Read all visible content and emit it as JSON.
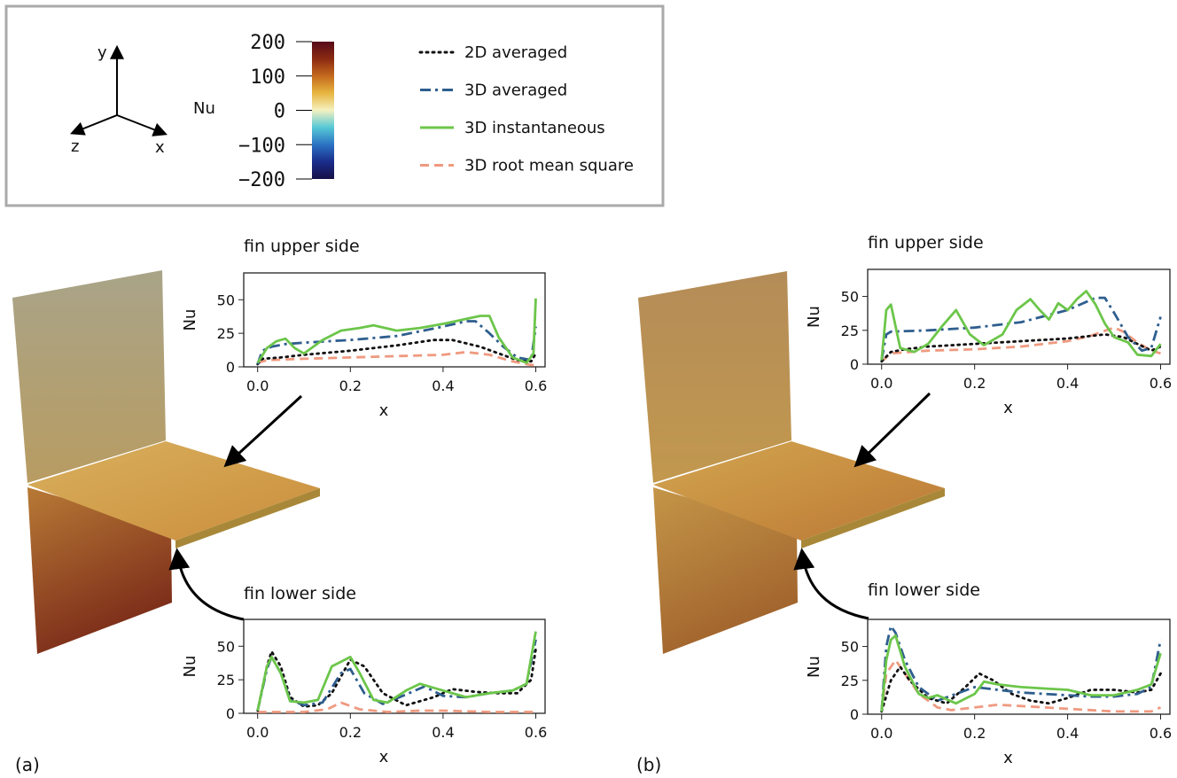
{
  "legend": {
    "axes": {
      "x": "x",
      "y": "y",
      "z": "z"
    },
    "colorbar": {
      "label": "Nu",
      "ticks": [
        "200",
        "100",
        "0",
        "−100",
        "−200"
      ],
      "range": [
        -200,
        200
      ],
      "colors": [
        "#560a1a",
        "#8b2a12",
        "#c46a1e",
        "#e8b640",
        "#f4f1c0",
        "#56c8d6",
        "#2b72c2",
        "#1a2c8a",
        "#161048"
      ]
    },
    "series_styles": [
      {
        "name": "2D averaged",
        "color": "#111111",
        "dash": "dotted"
      },
      {
        "name": "3D averaged",
        "color": "#2e5e8e",
        "dash": "dashdot"
      },
      {
        "name": "3D instantaneous",
        "color": "#6cc64a",
        "dash": "solid"
      },
      {
        "name": "3D root mean square",
        "color": "#ef9a80",
        "dash": "dashed"
      }
    ]
  },
  "panels": [
    {
      "label": "(a)",
      "fin_colors": {
        "vertical_top": "#b8a57a",
        "fin": "#d2a64e",
        "vertical_bottom": "#9a4e22"
      }
    },
    {
      "label": "(b)",
      "fin_colors": {
        "vertical_top": "#b88e52",
        "fin": "#cc9a48",
        "vertical_bottom": "#a86c30"
      }
    }
  ],
  "chart_data": [
    {
      "type": "line",
      "panel": "(a)",
      "title": "fin upper side",
      "xlabel": "x",
      "ylabel": "Nu",
      "xlim": [
        -0.03,
        0.62
      ],
      "ylim": [
        0,
        70
      ],
      "xticks": [
        "0.0",
        "0.2",
        "0.4",
        "0.6"
      ],
      "yticks": [
        "0",
        "25",
        "50"
      ],
      "grid": false,
      "series": [
        {
          "name": "2D averaged",
          "x": [
            0,
            0.01,
            0.05,
            0.1,
            0.2,
            0.3,
            0.38,
            0.42,
            0.48,
            0.52,
            0.56,
            0.59,
            0.6
          ],
          "y": [
            2,
            6,
            7,
            9,
            12,
            16,
            20,
            20,
            15,
            10,
            5,
            4,
            10
          ]
        },
        {
          "name": "3D averaged",
          "x": [
            0,
            0.01,
            0.03,
            0.06,
            0.1,
            0.2,
            0.3,
            0.4,
            0.45,
            0.47,
            0.5,
            0.53,
            0.56,
            0.59,
            0.6
          ],
          "y": [
            2,
            12,
            15,
            17,
            18,
            20,
            23,
            30,
            34,
            34,
            25,
            15,
            7,
            5,
            30
          ]
        },
        {
          "name": "3D instantaneous",
          "x": [
            0,
            0.02,
            0.04,
            0.06,
            0.08,
            0.1,
            0.14,
            0.18,
            0.22,
            0.25,
            0.3,
            0.35,
            0.4,
            0.44,
            0.48,
            0.5,
            0.52,
            0.55,
            0.58,
            0.595,
            0.6
          ],
          "y": [
            3,
            14,
            19,
            21,
            14,
            10,
            20,
            27,
            29,
            31,
            27,
            29,
            32,
            35,
            38,
            38,
            22,
            7,
            3,
            10,
            51
          ]
        },
        {
          "name": "3D root mean square",
          "x": [
            0,
            0.02,
            0.1,
            0.2,
            0.3,
            0.4,
            0.45,
            0.5,
            0.55,
            0.58,
            0.6
          ],
          "y": [
            3,
            5,
            6,
            7,
            8,
            9,
            11,
            9,
            4,
            2,
            1
          ]
        }
      ]
    },
    {
      "type": "line",
      "panel": "(a)",
      "title": "fin lower side",
      "xlabel": "x",
      "ylabel": "Nu",
      "xlim": [
        -0.03,
        0.62
      ],
      "ylim": [
        0,
        70
      ],
      "xticks": [
        "0.0",
        "0.2",
        "0.4",
        "0.6"
      ],
      "yticks": [
        "0",
        "25",
        "50"
      ],
      "grid": false,
      "series": [
        {
          "name": "2D averaged",
          "x": [
            0,
            0.02,
            0.03,
            0.05,
            0.07,
            0.1,
            0.13,
            0.16,
            0.2,
            0.23,
            0.27,
            0.32,
            0.38,
            0.42,
            0.47,
            0.52,
            0.56,
            0.59,
            0.6
          ],
          "y": [
            2,
            35,
            46,
            35,
            12,
            5,
            6,
            15,
            40,
            35,
            15,
            6,
            12,
            18,
            16,
            15,
            15,
            25,
            48
          ]
        },
        {
          "name": "3D averaged",
          "x": [
            0,
            0.02,
            0.03,
            0.05,
            0.07,
            0.1,
            0.14,
            0.18,
            0.2,
            0.23,
            0.27,
            0.32,
            0.36,
            0.4,
            0.45,
            0.5,
            0.55,
            0.58,
            0.6
          ],
          "y": [
            2,
            33,
            42,
            30,
            10,
            6,
            8,
            30,
            33,
            15,
            7,
            14,
            20,
            13,
            12,
            15,
            17,
            22,
            55
          ]
        },
        {
          "name": "3D instantaneous",
          "x": [
            0,
            0.02,
            0.03,
            0.05,
            0.07,
            0.1,
            0.13,
            0.16,
            0.2,
            0.22,
            0.25,
            0.28,
            0.32,
            0.35,
            0.4,
            0.45,
            0.5,
            0.55,
            0.58,
            0.6
          ],
          "y": [
            2,
            35,
            42,
            30,
            9,
            8,
            10,
            35,
            42,
            30,
            10,
            8,
            17,
            22,
            17,
            12,
            15,
            17,
            22,
            61
          ]
        },
        {
          "name": "3D root mean square",
          "x": [
            0,
            0.05,
            0.1,
            0.15,
            0.18,
            0.22,
            0.28,
            0.35,
            0.4,
            0.5,
            0.6
          ],
          "y": [
            1,
            1,
            1,
            3,
            8,
            3,
            1,
            2,
            2,
            1,
            1
          ]
        }
      ]
    },
    {
      "type": "line",
      "panel": "(b)",
      "title": "fin upper side",
      "xlabel": "x",
      "ylabel": "Nu",
      "xlim": [
        -0.03,
        0.62
      ],
      "ylim": [
        0,
        70
      ],
      "xticks": [
        "0.0",
        "0.2",
        "0.4",
        "0.6"
      ],
      "yticks": [
        "0",
        "25",
        "50"
      ],
      "grid": false,
      "series": [
        {
          "name": "2D averaged",
          "x": [
            0,
            0.02,
            0.05,
            0.1,
            0.2,
            0.3,
            0.4,
            0.48,
            0.52,
            0.55,
            0.58,
            0.6
          ],
          "y": [
            2,
            9,
            11,
            13,
            15,
            17,
            19,
            22,
            20,
            15,
            10,
            13
          ]
        },
        {
          "name": "3D averaged",
          "x": [
            0,
            0.01,
            0.02,
            0.1,
            0.2,
            0.3,
            0.4,
            0.46,
            0.48,
            0.5,
            0.53,
            0.56,
            0.58,
            0.6
          ],
          "y": [
            3,
            22,
            24,
            25,
            27,
            31,
            40,
            49,
            49,
            38,
            20,
            10,
            12,
            35
          ]
        },
        {
          "name": "3D instantaneous",
          "x": [
            0,
            0.01,
            0.02,
            0.04,
            0.07,
            0.1,
            0.13,
            0.16,
            0.19,
            0.22,
            0.26,
            0.29,
            0.32,
            0.34,
            0.36,
            0.38,
            0.4,
            0.42,
            0.44,
            0.46,
            0.48,
            0.5,
            0.53,
            0.55,
            0.58,
            0.6
          ],
          "y": [
            3,
            40,
            44,
            12,
            9,
            15,
            28,
            40,
            22,
            14,
            22,
            40,
            48,
            40,
            33,
            45,
            40,
            48,
            54,
            44,
            30,
            20,
            16,
            7,
            6,
            15
          ]
        },
        {
          "name": "3D root mean square",
          "x": [
            0,
            0.02,
            0.1,
            0.2,
            0.3,
            0.4,
            0.45,
            0.5,
            0.52,
            0.55,
            0.58,
            0.6
          ],
          "y": [
            2,
            8,
            10,
            11,
            13,
            17,
            21,
            27,
            24,
            16,
            10,
            8
          ]
        }
      ]
    },
    {
      "type": "line",
      "panel": "(b)",
      "title": "fin lower side",
      "xlabel": "x",
      "ylabel": "Nu",
      "xlim": [
        -0.03,
        0.62
      ],
      "ylim": [
        0,
        70
      ],
      "xticks": [
        "0.0",
        "0.2",
        "0.4",
        "0.6"
      ],
      "yticks": [
        "0",
        "25",
        "50"
      ],
      "grid": false,
      "series": [
        {
          "name": "2D averaged",
          "x": [
            0,
            0.02,
            0.04,
            0.06,
            0.1,
            0.14,
            0.18,
            0.21,
            0.24,
            0.28,
            0.32,
            0.36,
            0.4,
            0.45,
            0.5,
            0.55,
            0.58,
            0.6
          ],
          "y": [
            2,
            25,
            35,
            25,
            12,
            8,
            20,
            30,
            25,
            15,
            10,
            8,
            12,
            18,
            18,
            16,
            18,
            30
          ]
        },
        {
          "name": "3D averaged",
          "x": [
            0,
            0.01,
            0.02,
            0.03,
            0.05,
            0.08,
            0.12,
            0.16,
            0.2,
            0.25,
            0.3,
            0.35,
            0.4,
            0.45,
            0.5,
            0.55,
            0.58,
            0.6
          ],
          "y": [
            2,
            50,
            65,
            60,
            40,
            20,
            10,
            15,
            20,
            18,
            16,
            15,
            14,
            13,
            13,
            15,
            20,
            55
          ]
        },
        {
          "name": "3D instantaneous",
          "x": [
            0,
            0.01,
            0.02,
            0.03,
            0.05,
            0.08,
            0.1,
            0.12,
            0.16,
            0.2,
            0.22,
            0.25,
            0.3,
            0.35,
            0.4,
            0.45,
            0.5,
            0.55,
            0.58,
            0.6
          ],
          "y": [
            2,
            40,
            55,
            58,
            35,
            15,
            12,
            14,
            8,
            15,
            24,
            22,
            20,
            19,
            18,
            14,
            14,
            18,
            22,
            45
          ]
        },
        {
          "name": "3D root mean square",
          "x": [
            0,
            0.01,
            0.03,
            0.05,
            0.08,
            0.12,
            0.15,
            0.2,
            0.25,
            0.3,
            0.4,
            0.5,
            0.58,
            0.6
          ],
          "y": [
            2,
            30,
            40,
            30,
            15,
            5,
            3,
            5,
            7,
            6,
            4,
            2,
            2,
            5
          ]
        }
      ]
    }
  ]
}
